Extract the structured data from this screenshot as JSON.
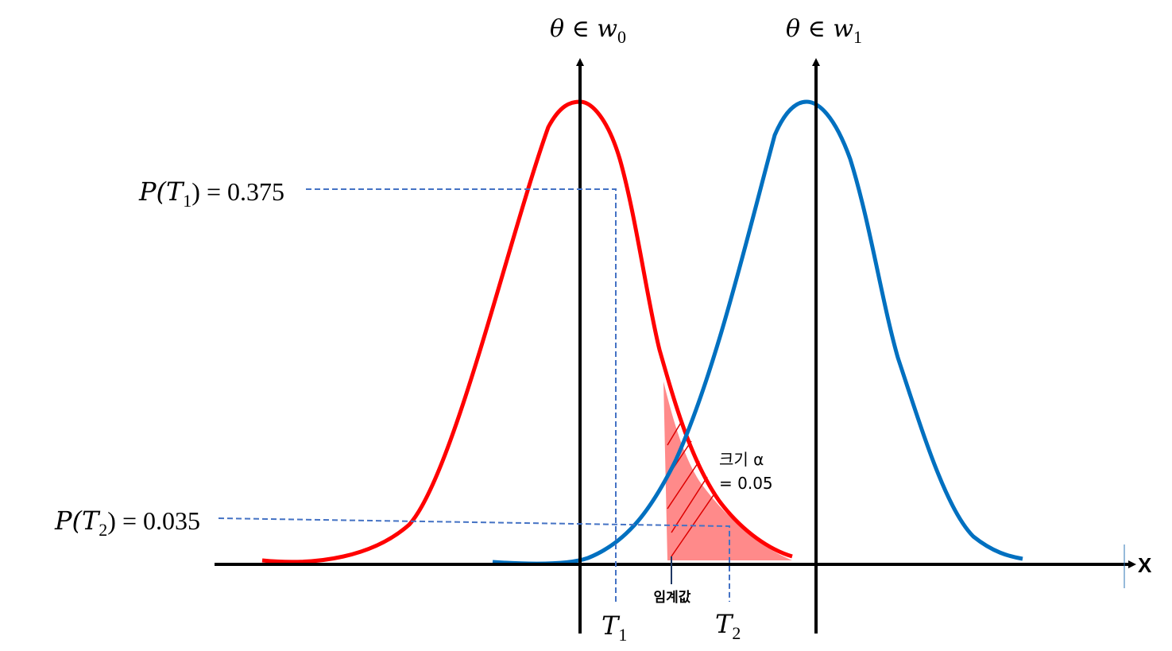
{
  "labels": {
    "h0": {
      "base": "θ ∈ w",
      "sub": "0"
    },
    "h1": {
      "base": "θ ∈ w",
      "sub": "1"
    },
    "p1": {
      "pre": "P(T",
      "sub": "1",
      "post": ") = 0.375"
    },
    "p2": {
      "pre": "P(T",
      "sub": "2",
      "post": ") = 0.035"
    },
    "size_line1": "크기 α",
    "size_line2": "= 0.05",
    "critical": "임계값",
    "t1": {
      "base": "T",
      "sub": "1"
    },
    "t2": {
      "base": "T",
      "sub": "2"
    },
    "x_axis": "X"
  }
}
